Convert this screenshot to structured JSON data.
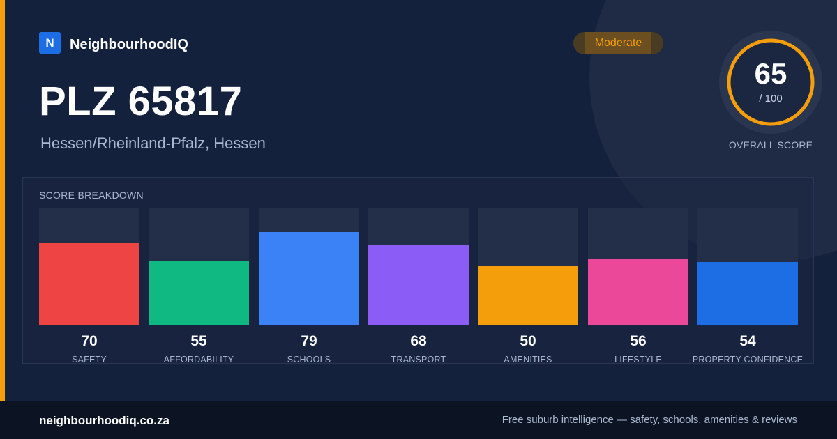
{
  "brand": {
    "logo_letter": "N",
    "name": "NeighbourhoodIQ"
  },
  "level_badge": "Moderate",
  "title": "PLZ 65817",
  "subtitle": "Hessen/Rheinland-Pfalz, Hessen",
  "overall": {
    "score": "65",
    "max": "/ 100",
    "caption": "OVERALL SCORE",
    "fraction": 0.65
  },
  "breakdown": {
    "title": "SCORE BREAKDOWN",
    "items": [
      {
        "label": "SAFETY",
        "value": "70",
        "score": 70,
        "color": "#ef4444"
      },
      {
        "label": "AFFORDABILITY",
        "value": "55",
        "score": 55,
        "color": "#10b981"
      },
      {
        "label": "SCHOOLS",
        "value": "79",
        "score": 79,
        "color": "#3b82f6"
      },
      {
        "label": "TRANSPORT",
        "value": "68",
        "score": 68,
        "color": "#8b5cf6"
      },
      {
        "label": "AMENITIES",
        "value": "50",
        "score": 50,
        "color": "#f59e0b"
      },
      {
        "label": "LIFESTYLE",
        "value": "56",
        "score": 56,
        "color": "#ec4899"
      },
      {
        "label": "PROPERTY CONFIDENCE",
        "value": "54",
        "score": 54,
        "color": "#1d6ee5"
      }
    ]
  },
  "colors": {
    "accent": "#f59e0b",
    "background": "#14213d",
    "brand": "#1d6ee5"
  },
  "footer": {
    "domain": "neighbourhoodiq.co.za",
    "tagline": "Free suburb intelligence — safety, schools, amenities & reviews"
  }
}
